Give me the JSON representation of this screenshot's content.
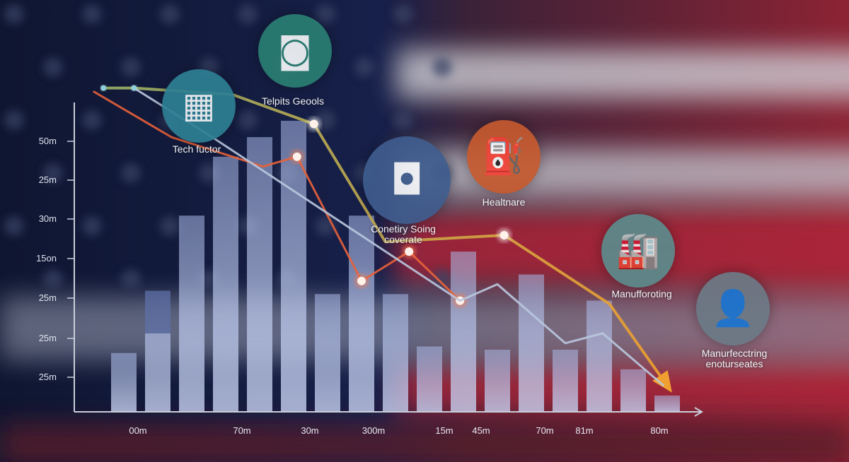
{
  "colors": {
    "navy": "#131b38",
    "red": "#b3283c",
    "bar": "#8fa4d8",
    "line_teal": "#5fa08a",
    "line_orange": "#e8623a",
    "line_pale": "#b9c8de",
    "arrow": "#e9a23a"
  },
  "chart_data": {
    "type": "bar",
    "title": "",
    "xlabel": "",
    "ylabel": "",
    "ylim": [
      0,
      100
    ],
    "grid": false,
    "y_tick_labels": [
      "50m",
      "25m",
      "30m",
      "15on",
      "25m",
      "25m",
      "25m"
    ],
    "x_tick_labels": [
      "00m",
      "70m",
      "30m",
      "300m",
      "15m",
      "45m",
      "70m",
      "81m",
      "80m"
    ],
    "bars": [
      18,
      37,
      60,
      78,
      84,
      89,
      36,
      60,
      36,
      20,
      49,
      19,
      42,
      19,
      34,
      13,
      5
    ],
    "bar_inner": [
      null,
      24,
      null,
      null,
      null,
      null,
      null,
      null,
      null,
      null,
      null,
      null,
      null,
      null,
      null,
      null,
      null
    ],
    "lines": [
      {
        "color": "#5fa08a",
        "points": [
          [
            -0.6,
            99
          ],
          [
            0.3,
            99
          ],
          [
            3.2,
            97
          ],
          [
            5.6,
            88
          ],
          [
            7.7,
            52
          ],
          [
            11.2,
            54
          ],
          [
            14.3,
            33
          ],
          [
            16.0,
            8
          ]
        ],
        "arrow": true,
        "markers": [
          5.6,
          11.2
        ]
      },
      {
        "color": "#e8623a",
        "points": [
          [
            -0.9,
            98
          ],
          [
            1.4,
            84
          ],
          [
            4.1,
            75
          ],
          [
            5.1,
            78
          ],
          [
            7.0,
            40
          ],
          [
            8.4,
            49
          ],
          [
            9.9,
            34
          ]
        ],
        "markers": [
          5.1,
          7.0,
          8.4,
          9.9
        ]
      },
      {
        "color": "#b9c8de",
        "points": [
          [
            0.3,
            99
          ],
          [
            2.6,
            84
          ],
          [
            9.9,
            34
          ],
          [
            11.0,
            39
          ],
          [
            13.0,
            21
          ],
          [
            14.1,
            24
          ],
          [
            15.9,
            8
          ]
        ],
        "markers": [
          -0.6,
          0.3
        ]
      }
    ]
  },
  "callouts": [
    {
      "icon": "chip-icon",
      "color": "#2e7f93",
      "lines": [
        "Tech fuctor"
      ]
    },
    {
      "icon": "circuit-chip-icon",
      "color": "#2b7f72",
      "lines": [
        "Telpits Geools"
      ]
    },
    {
      "icon": "processor-icon",
      "color": "#3f5d8e",
      "lines": [
        "Conetiry Soing",
        "coverate"
      ]
    },
    {
      "icon": "healthcare-icon",
      "color": "#c5592f",
      "lines": [
        "Healtnare"
      ]
    },
    {
      "icon": "factory-icon",
      "color": "#5c8b8c",
      "lines": [
        "Manufforoting"
      ]
    },
    {
      "icon": "worker-factory-icon",
      "color": "#6c7a86",
      "lines": [
        "Manurfecctring",
        "enoturseates"
      ]
    }
  ]
}
